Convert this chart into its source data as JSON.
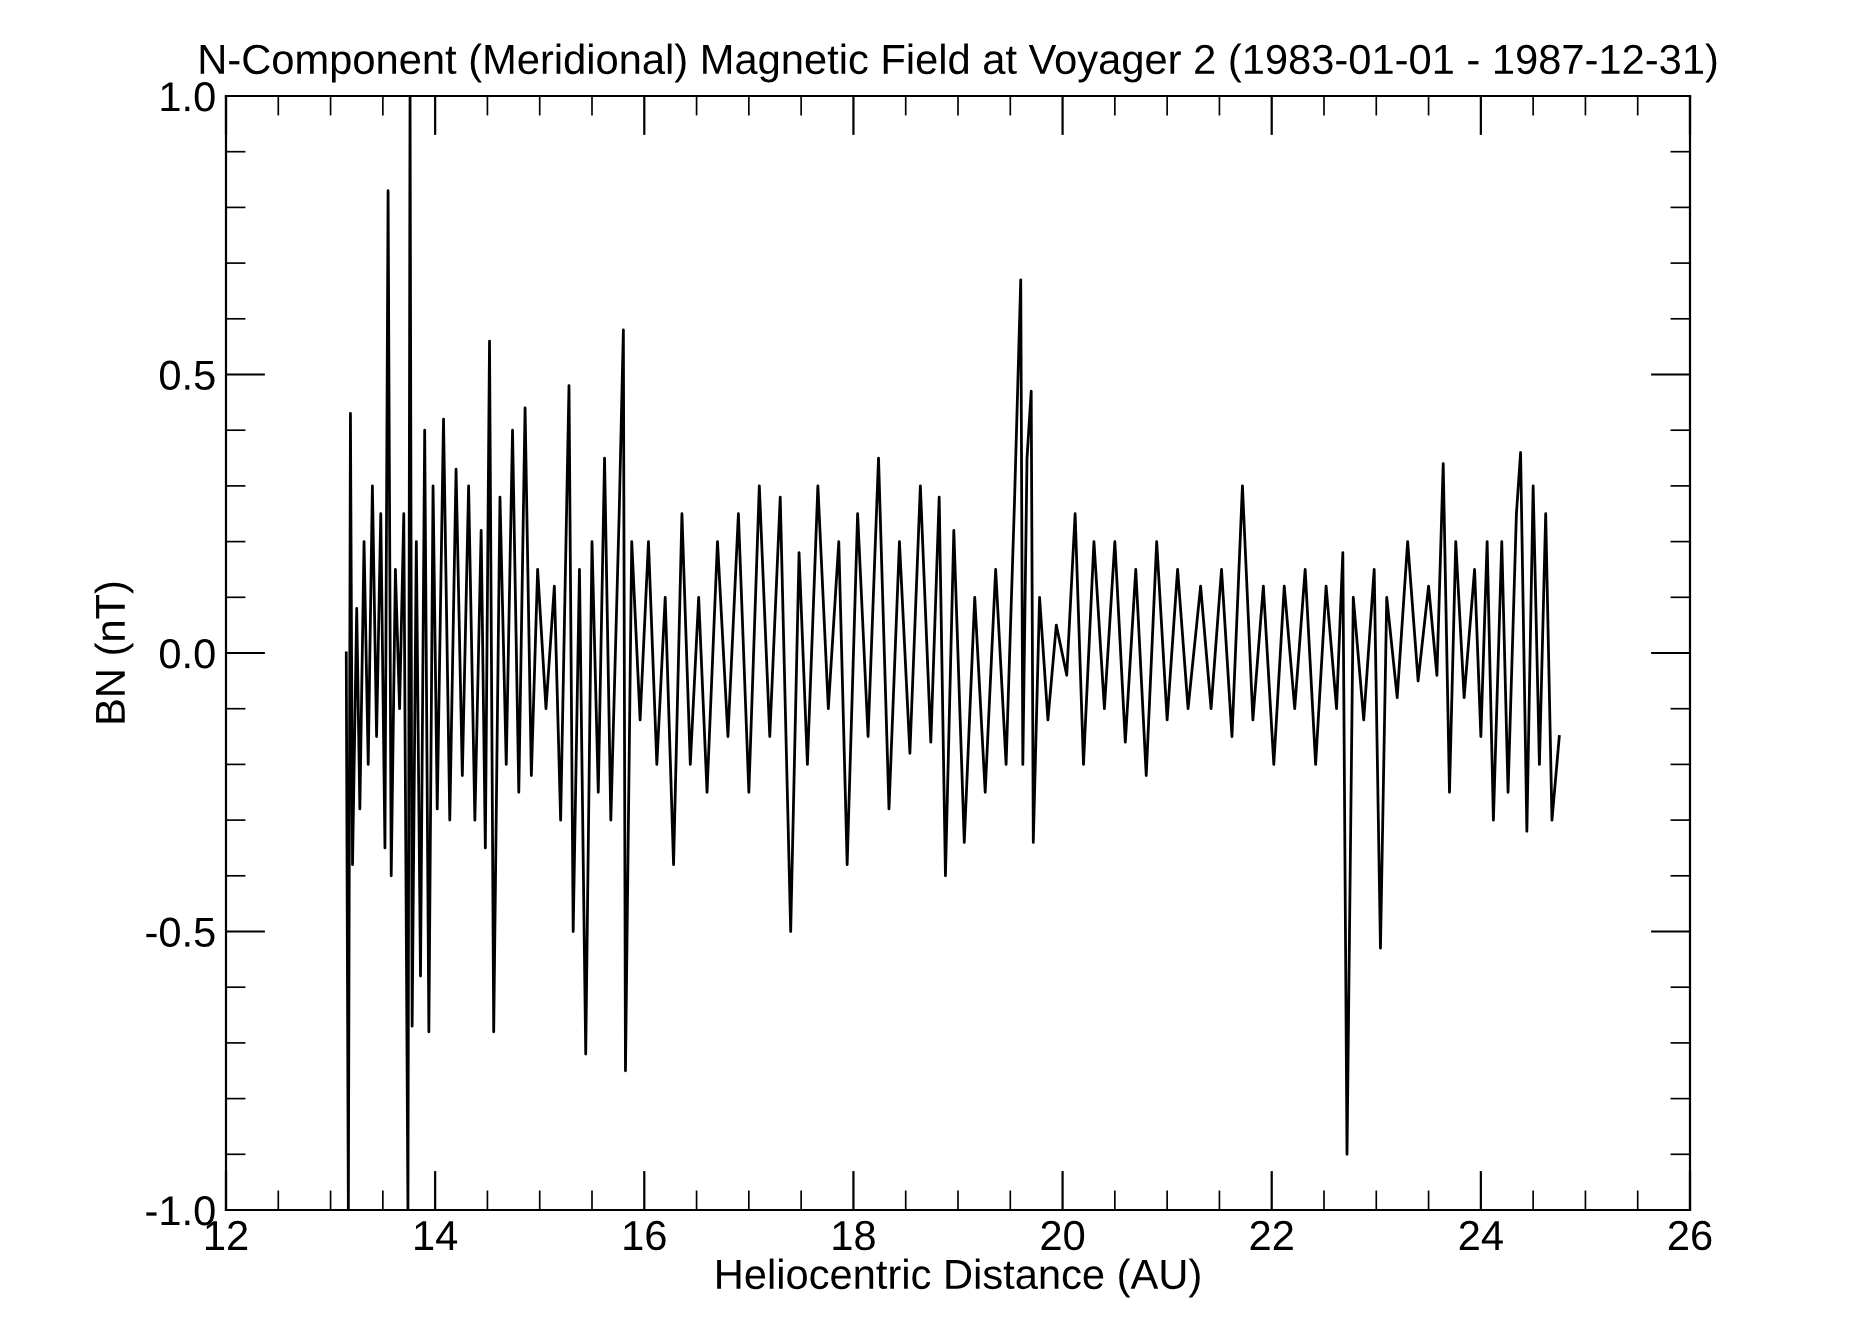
{
  "chart_data": {
    "type": "line",
    "title": "N-Component (Meridional) Magnetic Field at Voyager 2 (1983-01-01 - 1987-12-31)",
    "xlabel": "Heliocentric Distance (AU)",
    "ylabel": "BN (nT)",
    "xlim": [
      12,
      26
    ],
    "xticks": [
      12,
      14,
      16,
      18,
      20,
      22,
      24,
      26
    ],
    "ylim": [
      -1.0,
      1.0
    ],
    "yticks": [
      {
        "value": -1.0,
        "label": "-1.0"
      },
      {
        "value": -0.5,
        "label": "-0.5"
      },
      {
        "value": 0.0,
        "label": "0.0"
      },
      {
        "value": 0.5,
        "label": "0.5"
      },
      {
        "value": 1.0,
        "label": "1.0"
      }
    ],
    "grid": false,
    "legend": false,
    "marker": "none",
    "line_style": "solid",
    "series": [
      {
        "color": "#000000",
        "x": [
          13.15,
          13.17,
          13.19,
          13.21,
          13.25,
          13.28,
          13.32,
          13.36,
          13.4,
          13.44,
          13.48,
          13.52,
          13.55,
          13.58,
          13.62,
          13.66,
          13.7,
          13.74,
          13.76,
          13.78,
          13.82,
          13.86,
          13.9,
          13.94,
          13.98,
          14.02,
          14.08,
          14.14,
          14.2,
          14.26,
          14.32,
          14.38,
          14.44,
          14.48,
          14.52,
          14.56,
          14.62,
          14.68,
          14.74,
          14.8,
          14.86,
          14.92,
          14.98,
          15.06,
          15.14,
          15.2,
          15.28,
          15.32,
          15.38,
          15.44,
          15.5,
          15.56,
          15.62,
          15.68,
          15.76,
          15.8,
          15.82,
          15.88,
          15.96,
          16.04,
          16.12,
          16.2,
          16.28,
          16.36,
          16.44,
          16.52,
          16.6,
          16.7,
          16.8,
          16.9,
          17.0,
          17.1,
          17.2,
          17.3,
          17.4,
          17.48,
          17.56,
          17.66,
          17.76,
          17.86,
          17.94,
          18.04,
          18.14,
          18.24,
          18.34,
          18.44,
          18.54,
          18.64,
          18.74,
          18.82,
          18.88,
          18.96,
          19.06,
          19.16,
          19.26,
          19.36,
          19.46,
          19.54,
          19.6,
          19.62,
          19.66,
          19.7,
          19.72,
          19.78,
          19.86,
          19.94,
          20.04,
          20.12,
          20.2,
          20.3,
          20.4,
          20.5,
          20.6,
          20.7,
          20.8,
          20.9,
          21.0,
          21.1,
          21.2,
          21.32,
          21.42,
          21.52,
          21.62,
          21.72,
          21.82,
          21.92,
          22.02,
          22.12,
          22.22,
          22.32,
          22.42,
          22.52,
          22.62,
          22.68,
          22.72,
          22.78,
          22.88,
          22.98,
          23.04,
          23.1,
          23.2,
          23.3,
          23.4,
          23.5,
          23.58,
          23.64,
          23.7,
          23.76,
          23.84,
          23.94,
          24.0,
          24.06,
          24.12,
          24.2,
          24.26,
          24.34,
          24.38,
          24.44,
          24.5,
          24.56,
          24.62,
          24.68,
          24.75
        ],
        "values": [
          0.0,
          -1.0,
          0.43,
          -0.38,
          0.08,
          -0.28,
          0.2,
          -0.2,
          0.3,
          -0.15,
          0.25,
          -0.35,
          0.83,
          -0.4,
          0.15,
          -0.1,
          0.25,
          -1.0,
          1.0,
          -0.67,
          0.2,
          -0.58,
          0.4,
          -0.68,
          0.3,
          -0.28,
          0.42,
          -0.3,
          0.33,
          -0.22,
          0.3,
          -0.3,
          0.22,
          -0.35,
          0.56,
          -0.68,
          0.28,
          -0.2,
          0.4,
          -0.25,
          0.44,
          -0.22,
          0.15,
          -0.1,
          0.12,
          -0.3,
          0.48,
          -0.5,
          0.15,
          -0.72,
          0.2,
          -0.25,
          0.35,
          -0.3,
          0.25,
          0.58,
          -0.75,
          0.2,
          -0.12,
          0.2,
          -0.2,
          0.1,
          -0.38,
          0.25,
          -0.2,
          0.1,
          -0.25,
          0.2,
          -0.15,
          0.25,
          -0.25,
          0.3,
          -0.15,
          0.28,
          -0.5,
          0.18,
          -0.2,
          0.3,
          -0.1,
          0.2,
          -0.38,
          0.25,
          -0.15,
          0.35,
          -0.28,
          0.2,
          -0.18,
          0.3,
          -0.16,
          0.28,
          -0.4,
          0.22,
          -0.34,
          0.1,
          -0.25,
          0.15,
          -0.2,
          0.27,
          0.67,
          -0.2,
          0.35,
          0.47,
          -0.34,
          0.1,
          -0.12,
          0.05,
          -0.04,
          0.25,
          -0.2,
          0.2,
          -0.1,
          0.2,
          -0.16,
          0.15,
          -0.22,
          0.2,
          -0.12,
          0.15,
          -0.1,
          0.12,
          -0.1,
          0.15,
          -0.15,
          0.3,
          -0.12,
          0.12,
          -0.2,
          0.12,
          -0.1,
          0.15,
          -0.2,
          0.12,
          -0.1,
          0.18,
          -0.9,
          0.1,
          -0.12,
          0.15,
          -0.53,
          0.1,
          -0.08,
          0.2,
          -0.05,
          0.12,
          -0.04,
          0.34,
          -0.25,
          0.2,
          -0.08,
          0.15,
          -0.15,
          0.2,
          -0.3,
          0.2,
          -0.25,
          0.25,
          0.36,
          -0.32,
          0.3,
          -0.2,
          0.25,
          -0.3,
          -0.15
        ]
      }
    ]
  }
}
